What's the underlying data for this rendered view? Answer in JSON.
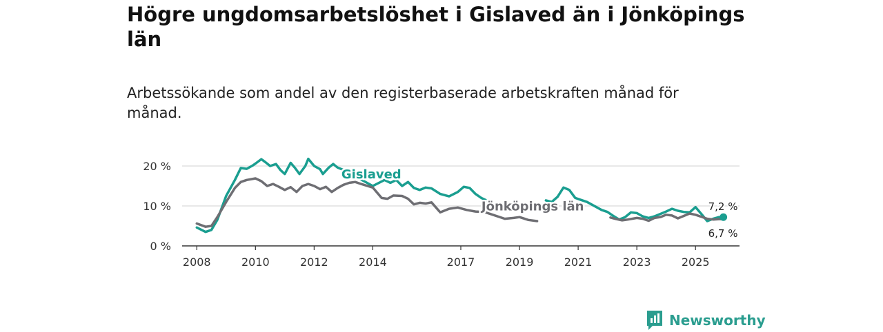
{
  "title": "Högre ungdomsarbetslöshet i Gislaved än i Jönköpings län",
  "subtitle": "Arbetssökande som andel av den registerbaserade arbetskraften månad för månad.",
  "brand": "Newsworthy",
  "colors": {
    "gislaved": "#1a9e90",
    "lan": "#6e6e73",
    "grid": "#d9d9d9",
    "axis": "#333333"
  },
  "chart_data": {
    "type": "line",
    "title": "Högre ungdomsarbetslöshet i Gislaved än i Jönköpings län",
    "ylim": [
      0,
      20
    ],
    "xlim": [
      2007.5,
      2026.5
    ],
    "y_ticks": [
      0,
      10,
      20
    ],
    "y_tick_labels": [
      "0 %",
      "10 %",
      "20 %"
    ],
    "x_ticks": [
      2008,
      2010,
      2012,
      2014,
      2017,
      2019,
      2021,
      2023,
      2025
    ],
    "x_tick_labels": [
      "2008",
      "2010",
      "2012",
      "2014",
      "2017",
      "2019",
      "2021",
      "2023",
      "2025"
    ],
    "series": [
      {
        "name": "Gislaved",
        "color": "#1a9e90",
        "label_at": [
          2013.95,
          16.9
        ],
        "end_label": "7,2 %",
        "x": [
          2008.0,
          2008.3,
          2008.5,
          2008.7,
          2009.0,
          2009.3,
          2009.5,
          2009.7,
          2009.9,
          2010.0,
          2010.2,
          2010.35,
          2010.5,
          2010.7,
          2010.85,
          2011.0,
          2011.2,
          2011.35,
          2011.5,
          2011.7,
          2011.8,
          2012.0,
          2012.2,
          2012.3,
          2012.5,
          2012.65,
          2012.8,
          2013.0,
          2013.2,
          2013.35,
          2013.5,
          2014.0,
          2014.4,
          2014.6,
          2014.8,
          2015.0,
          2015.2,
          2015.4,
          2015.6,
          2015.8,
          2016.0,
          2016.3,
          2016.6,
          2016.9,
          2017.1,
          2017.3,
          2017.5,
          2017.7,
          2017.9,
          2019.9,
          2020.1,
          2020.3,
          2020.5,
          2020.7,
          2020.9,
          2021.1,
          2021.3,
          2021.8,
          2022.0,
          2022.2,
          2022.4,
          2022.6,
          2022.8,
          2023.0,
          2023.2,
          2023.4,
          2023.6,
          2023.8,
          2024.0,
          2024.2,
          2024.4,
          2024.6,
          2024.8,
          2025.0,
          2025.2,
          2025.4,
          2025.6,
          2025.8,
          2025.95
        ],
        "y": [
          4.6,
          3.5,
          4.0,
          6.5,
          12.5,
          16.5,
          19.5,
          19.3,
          20.1,
          20.6,
          21.7,
          20.9,
          20.0,
          20.5,
          19.0,
          18.0,
          20.8,
          19.5,
          18.0,
          20.0,
          21.8,
          20.0,
          19.2,
          18.0,
          19.6,
          20.5,
          19.6,
          19.0,
          18.0,
          17.5,
          17.0,
          15.0,
          16.5,
          15.8,
          16.5,
          15.0,
          16.0,
          14.5,
          14.0,
          14.6,
          14.4,
          13.0,
          12.4,
          13.5,
          14.8,
          14.5,
          13.0,
          12.0,
          11.3,
          11.4,
          11.0,
          12.3,
          14.6,
          14.0,
          12.0,
          11.5,
          11.0,
          9.0,
          8.5,
          7.5,
          6.6,
          7.2,
          8.4,
          8.2,
          7.4,
          7.0,
          7.4,
          8.0,
          8.6,
          9.3,
          8.8,
          8.5,
          8.4,
          9.7,
          8.0,
          6.2,
          6.8,
          7.2,
          7.2
        ]
      },
      {
        "name": "Jönköpings län",
        "color": "#6e6e73",
        "label_at": [
          2019.45,
          8.85
        ],
        "end_label": "6,7 %",
        "x": [
          2008.0,
          2008.3,
          2008.5,
          2008.7,
          2009.0,
          2009.3,
          2009.5,
          2009.7,
          2010.0,
          2010.2,
          2010.4,
          2010.6,
          2010.8,
          2011.0,
          2011.2,
          2011.4,
          2011.6,
          2011.8,
          2012.0,
          2012.2,
          2012.4,
          2012.6,
          2012.8,
          2013.0,
          2013.2,
          2013.4,
          2013.6,
          2014.0,
          2014.3,
          2014.5,
          2014.7,
          2015.0,
          2015.2,
          2015.4,
          2015.6,
          2015.8,
          2016.0,
          2016.3,
          2016.6,
          2016.9,
          2017.2,
          2017.5,
          2017.8,
          2018.5,
          2018.8,
          2019.0,
          2019.3,
          2019.6,
          2022.1,
          2022.3,
          2022.5,
          2022.7,
          2023.0,
          2023.2,
          2023.4,
          2023.6,
          2023.8,
          2024.0,
          2024.2,
          2024.4,
          2024.6,
          2024.8,
          2025.0,
          2025.2,
          2025.4,
          2025.6,
          2025.8,
          2025.95
        ],
        "y": [
          5.6,
          4.8,
          5.0,
          7.2,
          11.0,
          14.5,
          16.0,
          16.5,
          16.9,
          16.2,
          15.0,
          15.5,
          14.8,
          14.0,
          14.7,
          13.5,
          15.0,
          15.5,
          15.0,
          14.2,
          14.8,
          13.5,
          14.5,
          15.3,
          15.8,
          16.0,
          15.5,
          14.6,
          12.0,
          11.8,
          12.6,
          12.5,
          11.8,
          10.4,
          10.8,
          10.6,
          10.9,
          8.4,
          9.3,
          9.6,
          9.0,
          8.6,
          8.5,
          6.8,
          7.0,
          7.2,
          6.5,
          6.2,
          7.1,
          6.7,
          6.4,
          6.6,
          7.0,
          6.8,
          6.3,
          7.0,
          7.2,
          7.8,
          7.6,
          6.9,
          7.5,
          8.1,
          7.8,
          7.3,
          6.8,
          6.6,
          6.7,
          6.7
        ]
      }
    ]
  }
}
